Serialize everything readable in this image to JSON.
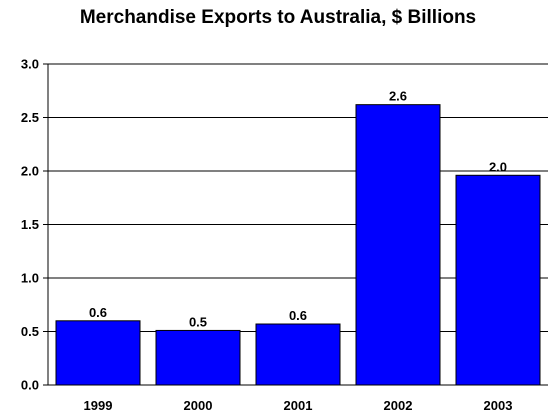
{
  "chart_data": {
    "type": "bar",
    "title": "Merchandise Exports to Australia, $ Billions",
    "xlabel": "",
    "ylabel": "",
    "categories": [
      "1999",
      "2000",
      "2001",
      "2002",
      "2003"
    ],
    "values": [
      0.6,
      0.51,
      0.57,
      2.62,
      1.96
    ],
    "data_labels": [
      "0.6",
      "0.5",
      "0.6",
      "2.6",
      "2.0"
    ],
    "ylim": [
      0,
      3.0
    ],
    "yticks": [
      0.0,
      0.5,
      1.0,
      1.5,
      2.0,
      2.5,
      3.0
    ],
    "ytick_labels": [
      "0.0",
      "0.5",
      "1.0",
      "1.5",
      "2.0",
      "2.5",
      "3.0"
    ],
    "grid": true,
    "bar_color": "#0000ff",
    "legend": "none"
  }
}
